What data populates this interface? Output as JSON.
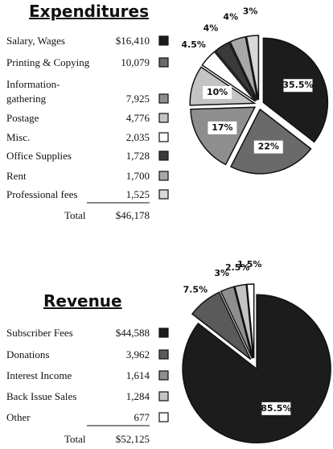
{
  "chart_data": [
    {
      "type": "pie",
      "title": "Expenditures",
      "categories": [
        "Salary, Wages",
        "Printing & Copying",
        "Information-\ngathering",
        "Postage",
        "Misc.",
        "Office Supplies",
        "Rent",
        "Professional fees"
      ],
      "amounts": [
        "$16,410",
        "10,079",
        "7,925",
        "4,776",
        "2,035",
        "1,728",
        "1,700",
        "1,525"
      ],
      "total_label": "Total",
      "total": "$46,178",
      "values": [
        35.5,
        22,
        17,
        10,
        4.5,
        4,
        4,
        3
      ],
      "value_labels": [
        "35.5%",
        "22%",
        "17%",
        "10%",
        "4.5%",
        "4%",
        "4%",
        "3%"
      ],
      "colors": [
        "#1c1c1c",
        "#6a6a6a",
        "#8e8e8e",
        "#c4c4c4",
        "#ffffff",
        "#3a3a3a",
        "#a8a8a8",
        "#d8d8d8"
      ]
    },
    {
      "type": "pie",
      "title": "Revenue",
      "categories": [
        "Subscriber Fees",
        "Donations",
        "Interest Income",
        "Back Issue Sales",
        "Other"
      ],
      "amounts": [
        "$44,588",
        "3,962",
        "1,614",
        "1,284",
        "677"
      ],
      "total_label": "Total",
      "total": "$52,125",
      "values": [
        85.5,
        7.5,
        3,
        2.5,
        1.5
      ],
      "value_labels": [
        "85.5%",
        "7.5%",
        "3%",
        "2.5%",
        "1.5%"
      ],
      "colors": [
        "#1c1c1c",
        "#5a5a5a",
        "#8e8e8e",
        "#c4c4c4",
        "#ffffff"
      ]
    }
  ]
}
